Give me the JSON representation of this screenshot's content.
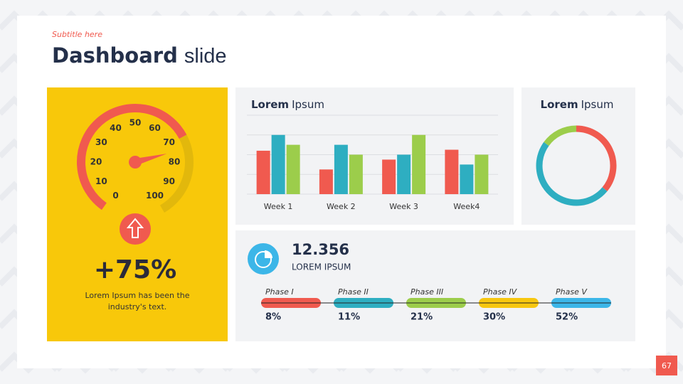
{
  "subtitle": "Subtitle here",
  "title_bold": "Dashboard",
  "title_light": "slide",
  "page_number": "67",
  "stat": {
    "value": "12.356",
    "label": "LOREM IPSUM"
  },
  "phases": [
    {
      "name": "Phase I",
      "value": "8%",
      "color": "#f05a4f"
    },
    {
      "name": "Phase II",
      "value": "11%",
      "color": "#2eaec1"
    },
    {
      "name": "Phase III",
      "value": "21%",
      "color": "#9ccd4b"
    },
    {
      "name": "Phase IV",
      "value": "30%",
      "color": "#f7c70f"
    },
    {
      "name": "Phase V",
      "value": "52%",
      "color": "#3cb6e8"
    }
  ],
  "chart_data": [
    {
      "type": "gauge",
      "range": [
        0,
        100
      ],
      "ticks": [
        0,
        10,
        20,
        30,
        40,
        50,
        60,
        70,
        80,
        90,
        100
      ],
      "values": [
        75
      ],
      "value_labels": [
        "+75%"
      ],
      "color": "#f05a4f",
      "caption": "Lorem Ipsum has been the industry's text."
    },
    {
      "type": "bar",
      "title_parts": [
        "Lorem",
        "Ipsum"
      ],
      "categories": [
        "Week 1",
        "Week 2",
        "Week 3",
        "Week4"
      ],
      "series": [
        {
          "color": "#f05a4f",
          "values": [
            2.2,
            1.25,
            1.75,
            2.25
          ]
        },
        {
          "color": "#2eaec1",
          "values": [
            3.0,
            2.5,
            2.0,
            1.5
          ]
        },
        {
          "color": "#9ccd4b",
          "values": [
            2.5,
            2.0,
            3.0,
            2.0
          ]
        }
      ],
      "ylim": [
        0,
        4
      ],
      "yticks": [
        0,
        1,
        2,
        3,
        4
      ],
      "grid": true,
      "tick_labels": false
    },
    {
      "type": "pie",
      "title_parts": [
        "Lorem",
        "Ipsum"
      ],
      "donut": true,
      "values": [
        36,
        49,
        15
      ],
      "colors": [
        "#f05a4f",
        "#2eaec1",
        "#9ccd4b"
      ]
    }
  ]
}
